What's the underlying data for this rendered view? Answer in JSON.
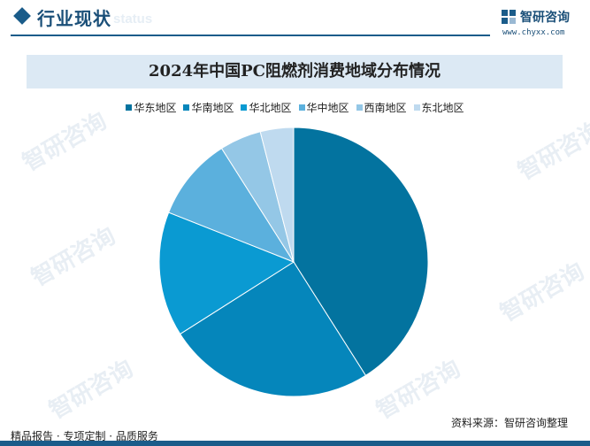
{
  "header": {
    "section_title": "行业现状",
    "ghost_text": "status",
    "brand_name": "智研咨询",
    "brand_url": "www.chyxx.com"
  },
  "watermark_text": "智研咨询",
  "footer": {
    "left": "精品报告 · 专项定制 · 品质服务",
    "right": "资料来源：智研咨询整理"
  },
  "colors": {
    "accent": "#1a5c8a",
    "title_band": "#dce9f4"
  },
  "chart_data": {
    "type": "pie",
    "title": "2024年中国PC阻燃剂消费地域分布情况",
    "legend_position": "top",
    "start_angle_deg": 0,
    "series": [
      {
        "name": "华东地区",
        "value": 41,
        "color": "#03739f"
      },
      {
        "name": "华南地区",
        "value": 25,
        "color": "#0586bb"
      },
      {
        "name": "华北地区",
        "value": 15,
        "color": "#0a9ad2"
      },
      {
        "name": "华中地区",
        "value": 10,
        "color": "#5bb0dd"
      },
      {
        "name": "西南地区",
        "value": 5,
        "color": "#94c7e6"
      },
      {
        "name": "东北地区",
        "value": 4,
        "color": "#bfdaef"
      }
    ]
  }
}
